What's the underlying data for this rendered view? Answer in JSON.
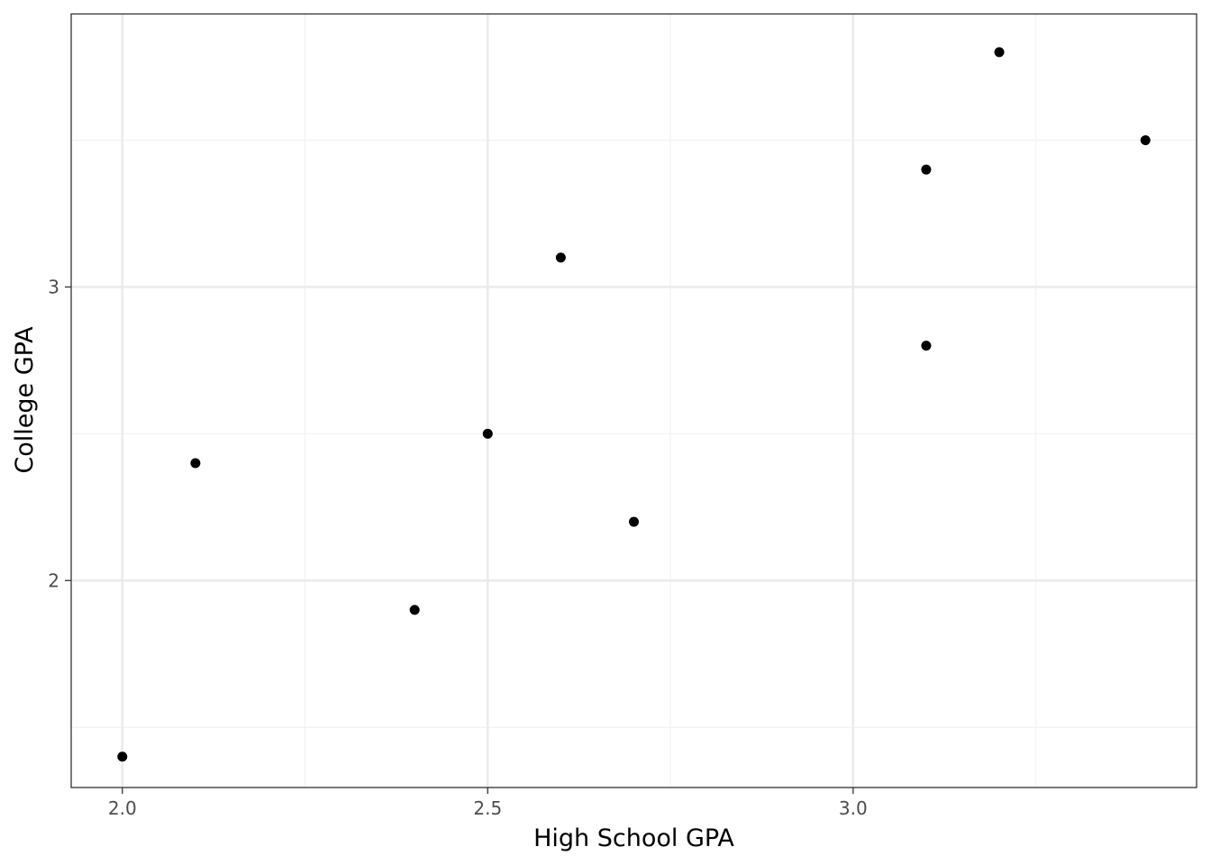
{
  "chart_data": {
    "type": "scatter",
    "title": "",
    "xlabel": "High School GPA",
    "ylabel": "College GPA",
    "xlim": [
      1.93,
      3.47
    ],
    "ylim": [
      1.295,
      3.93
    ],
    "x_ticks": [
      {
        "value": 2.0,
        "label": "2.0"
      },
      {
        "value": 2.5,
        "label": "2.5"
      },
      {
        "value": 3.0,
        "label": "3.0"
      }
    ],
    "y_ticks": [
      {
        "value": 2,
        "label": "2"
      },
      {
        "value": 3,
        "label": "3"
      }
    ],
    "x_minor_grid": [
      2.25,
      2.75,
      3.25
    ],
    "y_minor_grid": [
      1.5,
      2.5,
      3.5
    ],
    "grid": true,
    "points": [
      {
        "x": 2.0,
        "y": 1.4
      },
      {
        "x": 2.1,
        "y": 2.4
      },
      {
        "x": 2.4,
        "y": 1.9
      },
      {
        "x": 2.5,
        "y": 2.5
      },
      {
        "x": 2.6,
        "y": 3.1
      },
      {
        "x": 2.7,
        "y": 2.2
      },
      {
        "x": 3.1,
        "y": 3.4
      },
      {
        "x": 3.1,
        "y": 2.8
      },
      {
        "x": 3.2,
        "y": 3.8
      },
      {
        "x": 3.4,
        "y": 3.5
      }
    ],
    "colors": {
      "point": "#000000",
      "major_grid": "#ebebeb",
      "minor_grid": "#f2f2f2",
      "border": "#333333",
      "tick_label": "#4d4d4d"
    }
  }
}
